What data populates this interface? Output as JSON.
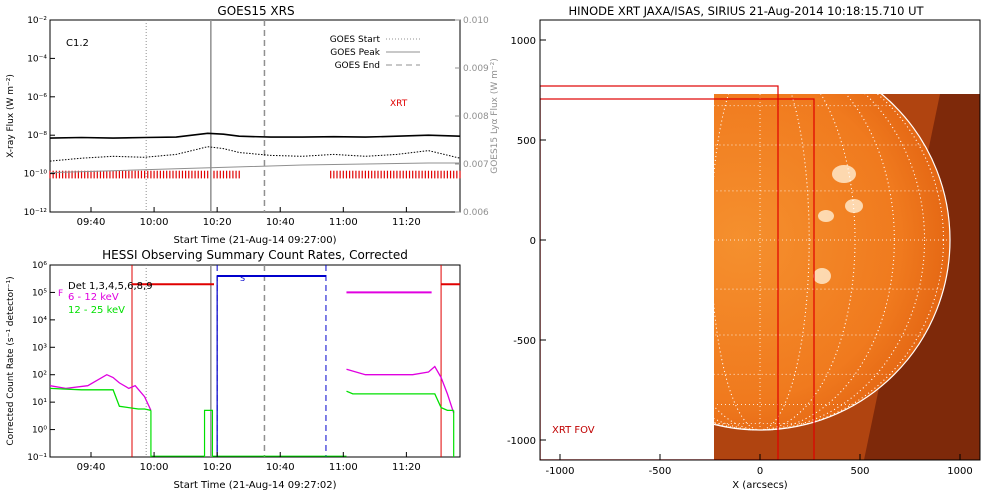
{
  "charts": [
    {
      "id": "goes",
      "type": "line",
      "title": "GOES15 XRS",
      "xlabel": "Start Time (21-Aug-14 09:27:00)",
      "ylabel": "X-ray Flux (W m⁻²)",
      "y2label": "GOES15 Lyα Flux (W m⁻²)",
      "x_ticks": [
        "09:40",
        "10:00",
        "10:20",
        "10:40",
        "11:00",
        "11:20"
      ],
      "x_range_min": [
        0,
        130
      ],
      "y_log_range": [
        -12,
        -2
      ],
      "y_ticks": [
        "10⁻¹²",
        "10⁻¹⁰",
        "10⁻⁸",
        "10⁻⁶",
        "10⁻⁴",
        "10⁻²"
      ],
      "y2_range": [
        0.006,
        0.01
      ],
      "y2_ticks": [
        "0.006",
        "0.007",
        "0.008",
        "0.009",
        "0.010"
      ],
      "class_label": "C1.2",
      "legend": [
        {
          "label": "GOES Start",
          "style": "dotted",
          "color": "#909090"
        },
        {
          "label": "GOES Peak",
          "style": "solid",
          "color": "#909090"
        },
        {
          "label": "GOES End",
          "style": "dashed",
          "color": "#909090"
        }
      ],
      "markers_min": {
        "start": 30.5,
        "peak": 51,
        "end": 68
      },
      "series": [
        {
          "name": "XRT",
          "color": "#000000",
          "style": "solid",
          "x": [
            0,
            10,
            20,
            30,
            40,
            45,
            50,
            55,
            60,
            70,
            80,
            90,
            100,
            110,
            120,
            130
          ],
          "y_log": [
            -8.15,
            -8.12,
            -8.15,
            -8.12,
            -8.1,
            -8.0,
            -7.9,
            -7.95,
            -8.05,
            -8.1,
            -8.1,
            -8.08,
            -8.1,
            -8.05,
            -8.0,
            -8.05
          ]
        },
        {
          "name": "",
          "color": "#000000",
          "style": "dotted",
          "x": [
            0,
            10,
            20,
            30,
            40,
            45,
            50,
            55,
            60,
            70,
            80,
            90,
            100,
            110,
            120,
            130
          ],
          "y_log": [
            -9.35,
            -9.2,
            -9.1,
            -9.15,
            -9.0,
            -8.8,
            -8.6,
            -8.7,
            -8.9,
            -9.05,
            -9.1,
            -9.0,
            -9.1,
            -9.0,
            -8.8,
            -9.2
          ]
        },
        {
          "name": "",
          "color": "#909090",
          "style": "solid",
          "x": [
            0,
            20,
            40,
            60,
            80,
            100,
            120,
            130
          ],
          "y_log": [
            -9.95,
            -9.85,
            -9.75,
            -9.65,
            -9.55,
            -9.5,
            -9.45,
            -9.45
          ]
        }
      ],
      "night_bars_min": [
        [
          0,
          60
        ],
        [
          89,
          130
        ]
      ]
    },
    {
      "id": "hessi",
      "type": "line",
      "title": "HESSI Observing Summary Count Rates, Corrected",
      "xlabel": "Start Time (21-Aug-14 09:27:02)",
      "ylabel": "Corrected Count Rate (s⁻¹ detector⁻¹)",
      "x_ticks": [
        "09:40",
        "10:00",
        "10:20",
        "10:40",
        "11:00",
        "11:20"
      ],
      "x_range_min": [
        0,
        130
      ],
      "y_log_range": [
        -1,
        6
      ],
      "y_ticks": [
        "10⁻¹",
        "10⁰",
        "10¹",
        "10²",
        "10³",
        "10⁴",
        "10⁵",
        "10⁶"
      ],
      "legend": [
        {
          "label": "Det 1,3,4,5,6,8,9",
          "color": "#000000"
        },
        {
          "label": "6 - 12 keV",
          "color": "#e000e0"
        },
        {
          "label": "12 - 25 keV",
          "color": "#00e000"
        }
      ],
      "flags": [
        {
          "label": "F",
          "color": "#e000e0"
        },
        {
          "label": "S",
          "color": "#0000cc"
        }
      ],
      "red_lines_min": [
        26,
        124
      ],
      "blue_lines_min": [
        53,
        87.5
      ],
      "gray_lines_min": {
        "start": 30.5,
        "peak": 51,
        "end": 68
      },
      "series": [
        {
          "name": "6 - 12 keV",
          "color": "#e000e0",
          "segments": [
            {
              "x": [
                0,
                5,
                12,
                18,
                20,
                22,
                25,
                27,
                30,
                32
              ],
              "y_log": [
                1.6,
                1.5,
                1.6,
                2.0,
                1.9,
                1.7,
                1.5,
                1.6,
                1.2,
                0.7
              ]
            },
            {
              "x": [
                94,
                100,
                105,
                110,
                115,
                120,
                122,
                124,
                126,
                128
              ],
              "y_log": [
                2.2,
                2.0,
                2.0,
                2.0,
                2.0,
                2.1,
                2.3,
                1.9,
                1.3,
                0.6
              ]
            }
          ]
        },
        {
          "name": "12 - 25 keV",
          "color": "#00e000",
          "segments": [
            {
              "x": [
                0,
                10,
                15,
                20,
                22,
                28,
                30,
                32
              ],
              "y_log": [
                1.5,
                1.45,
                1.45,
                1.45,
                0.85,
                0.75,
                0.75,
                0.7
              ]
            },
            {
              "x": [
                94,
                96,
                105,
                115,
                122,
                124,
                126,
                128
              ],
              "y_log": [
                1.4,
                1.3,
                1.3,
                1.3,
                1.3,
                0.8,
                0.7,
                0.7
              ]
            }
          ]
        }
      ],
      "state_levels": [
        {
          "color": "#e00000",
          "x": [
            26,
            52
          ],
          "y_log": 5.3
        },
        {
          "color": "#0000cc",
          "x": [
            53,
            87.5
          ],
          "y_log": 5.6
        },
        {
          "color": "#e000e0",
          "x": [
            94,
            121
          ],
          "y_log": 5.0
        },
        {
          "color": "#e00000",
          "x": [
            124,
            130
          ],
          "y_log": 5.3
        }
      ]
    },
    {
      "id": "hinode",
      "type": "image",
      "title": "HINODE XRT JAXA/ISAS, SIRIUS 21-Aug-2014 10:18:15.710 UT",
      "xlabel": "X (arcsecs)",
      "x_range": [
        -1100,
        1100
      ],
      "y_range": [
        -1100,
        1100
      ],
      "x_ticks": [
        "-1000",
        "-500",
        "0",
        "500",
        "1000"
      ],
      "y_ticks": [
        "-1000",
        "-500",
        "0",
        "500",
        "1000"
      ],
      "fov_label": "XRT FOV",
      "solar_radius_arcsec": 950,
      "image_extent": {
        "x": [
          -230,
          1100
        ],
        "y": [
          -1100,
          730
        ]
      },
      "fov_boxes": [
        {
          "x": [
            -1100,
            90
          ],
          "y": [
            -1100,
            770
          ]
        },
        {
          "x": [
            -1100,
            270
          ],
          "y": [
            -1100,
            705
          ]
        }
      ],
      "colors": {
        "disk": "#f07a1e",
        "limb": "#ffffff",
        "box": "#e00000"
      }
    }
  ]
}
